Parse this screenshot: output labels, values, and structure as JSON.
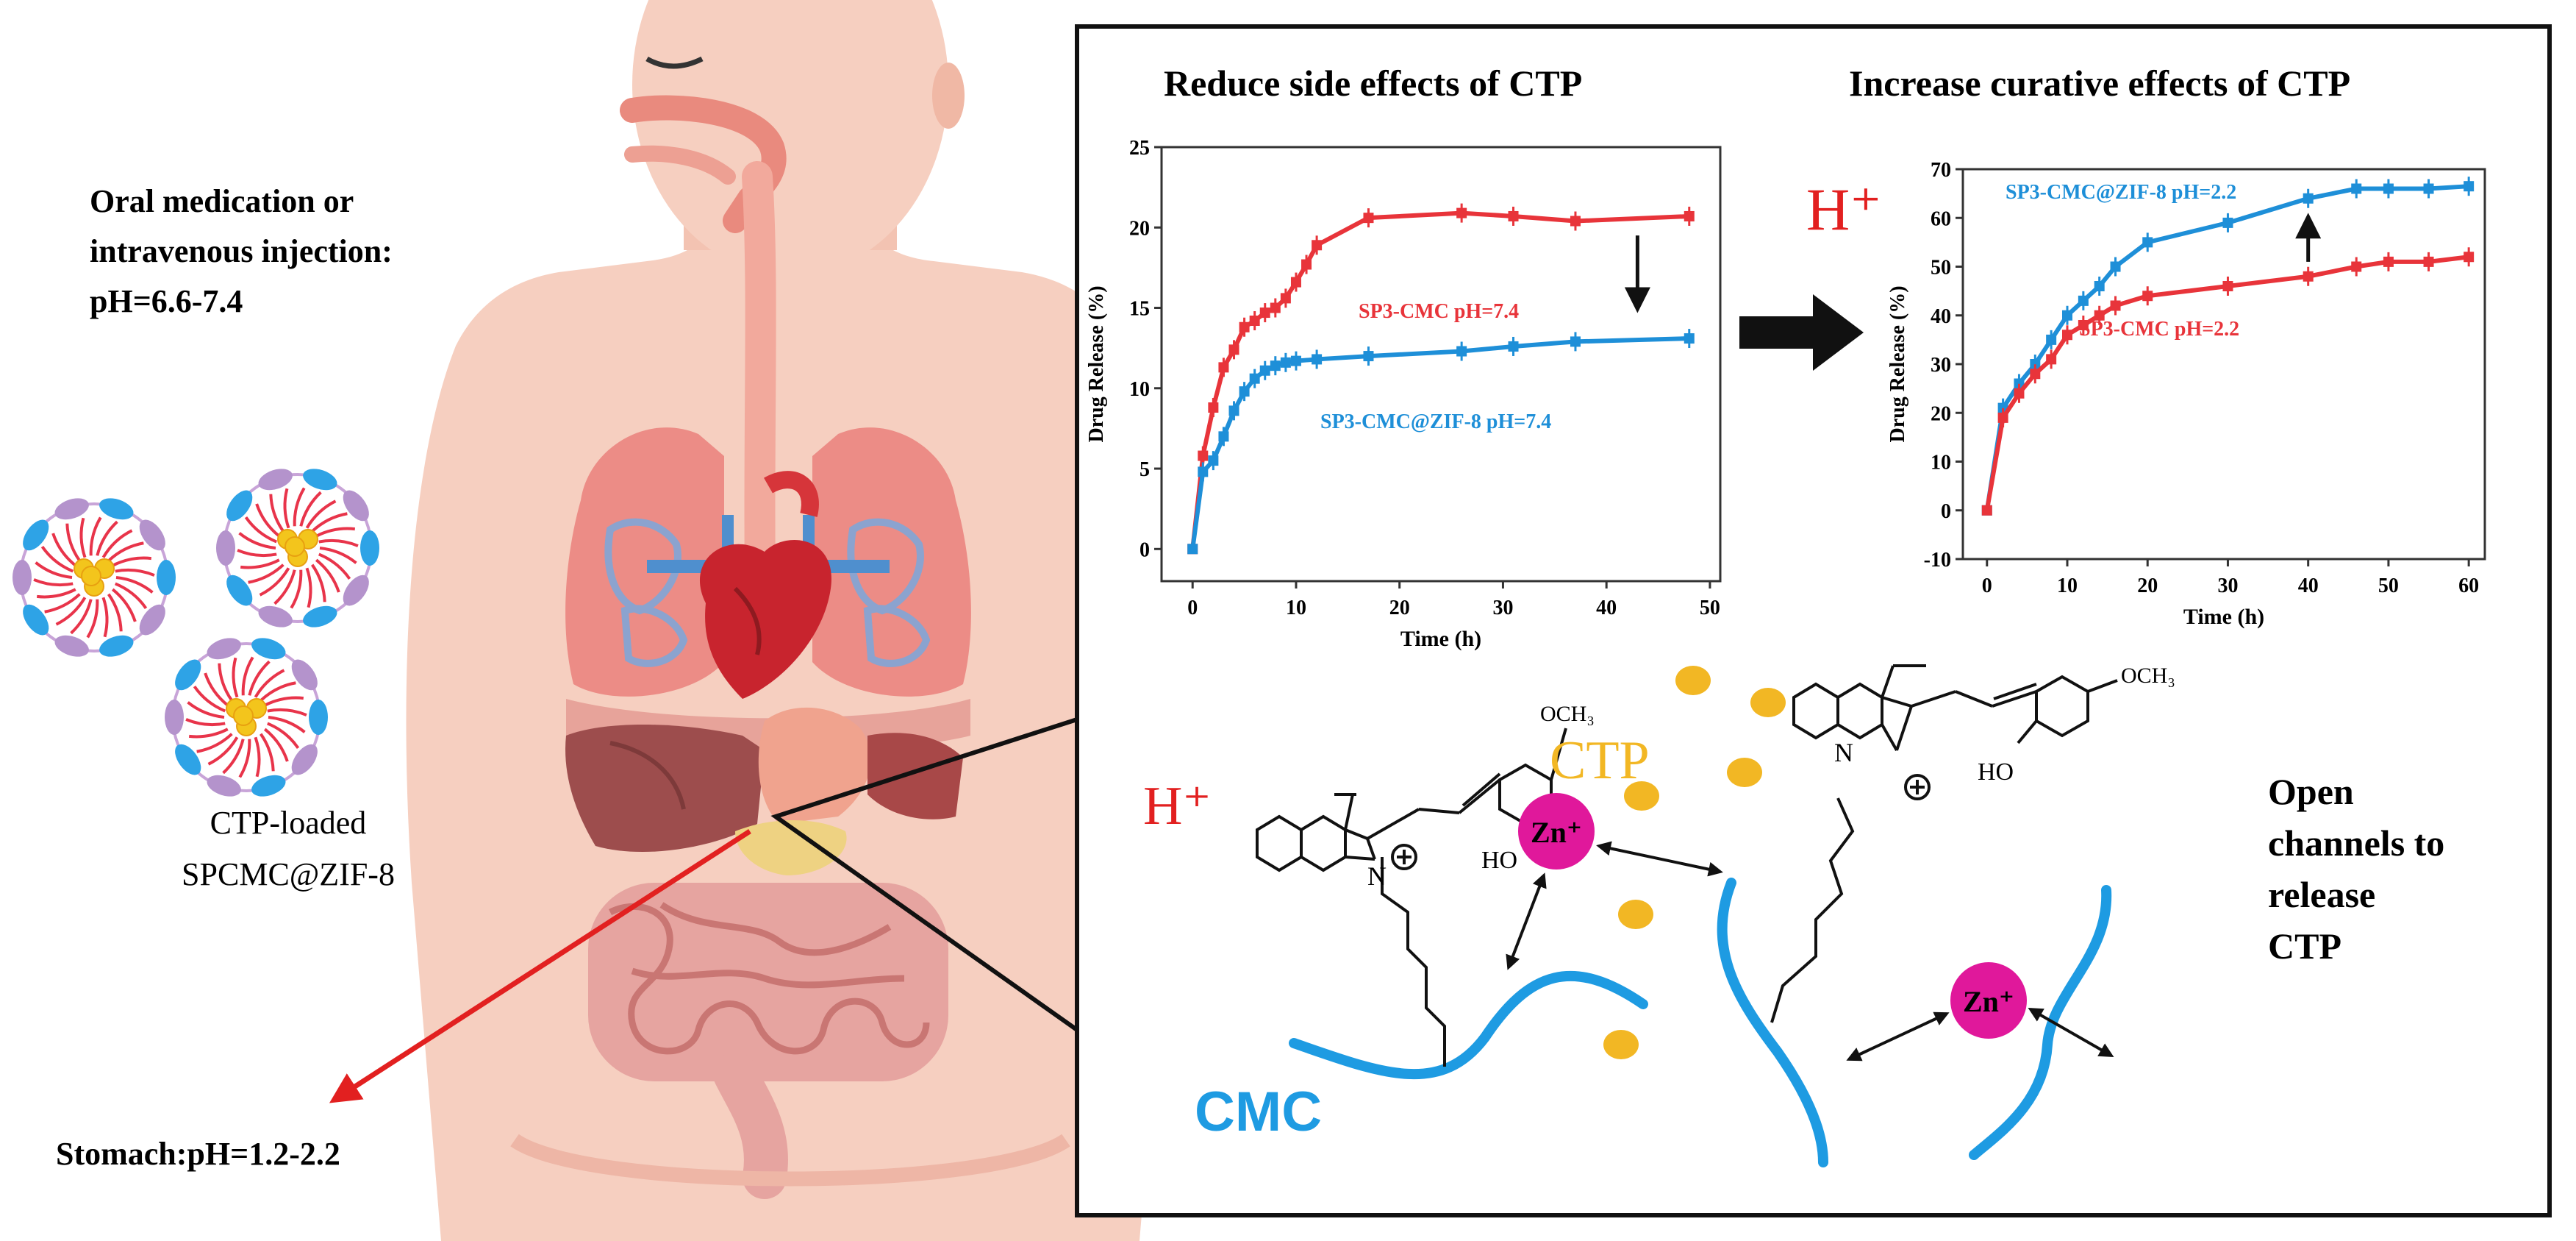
{
  "left": {
    "oral_lines": [
      "Oral medication or",
      "intravenous injection:",
      "pH=6.6-7.4"
    ],
    "loaded_lines": [
      "CTP-loaded",
      "SPCMC@ZIF-8"
    ],
    "stomach": "Stomach:pH=1.2-2.2"
  },
  "panel": {
    "title_left": "Reduce side effects of CTP",
    "title_right": "Increase curative effects of CTP",
    "hplus_mid": "H⁺",
    "hplus_low": "H⁺",
    "ctp_label": "CTP",
    "cmc_label": "CMC",
    "zn1": "Zn⁺",
    "zn2": "Zn⁺",
    "och3_1": "OCH₃",
    "och3_2": "OCH₃",
    "ho_1": "HO",
    "ho_2": "HO",
    "n_1": "N",
    "n_2": "N",
    "open_lines": [
      "Open",
      "channels to",
      "release",
      "CTP"
    ]
  },
  "chart_data": [
    {
      "type": "line",
      "xlabel": "Time (h)",
      "ylabel": "Drug Release (%)",
      "xlim": [
        -3,
        51
      ],
      "ylim": [
        -2,
        25
      ],
      "xticks": [
        0,
        10,
        20,
        30,
        40,
        50
      ],
      "yticks": [
        0,
        5,
        10,
        15,
        20,
        25
      ],
      "annotation": "arrow down from red to blue curve near t=43 h",
      "series": [
        {
          "name": "SP3-CMC pH=7.4",
          "color": "#e8343a",
          "x": [
            0,
            1,
            2,
            3,
            4,
            5,
            6,
            7,
            8,
            9,
            10,
            11,
            12,
            17,
            26,
            31,
            37,
            48
          ],
          "y": [
            0,
            5.8,
            8.8,
            11.3,
            12.4,
            13.8,
            14.2,
            14.7,
            15.0,
            15.6,
            16.6,
            17.7,
            18.9,
            20.6,
            20.9,
            20.7,
            20.4,
            20.7
          ]
        },
        {
          "name": "SP3-CMC@ZIF-8 pH=7.4",
          "color": "#1e8fd8",
          "x": [
            0,
            1,
            2,
            3,
            4,
            5,
            6,
            7,
            8,
            9,
            10,
            12,
            17,
            26,
            31,
            37,
            48
          ],
          "y": [
            0,
            4.8,
            5.5,
            7.0,
            8.6,
            9.8,
            10.6,
            11.1,
            11.4,
            11.6,
            11.7,
            11.8,
            12.0,
            12.3,
            12.6,
            12.9,
            13.1
          ]
        }
      ]
    },
    {
      "type": "line",
      "xlabel": "Time (h)",
      "ylabel": "Drug Release (%)",
      "xlim": [
        -3,
        62
      ],
      "ylim": [
        -10,
        70
      ],
      "xticks": [
        0,
        10,
        20,
        30,
        40,
        50,
        60
      ],
      "yticks": [
        -10,
        0,
        10,
        20,
        30,
        40,
        50,
        60,
        70
      ],
      "annotation": "arrow up from red to blue curve near t=40 h",
      "series": [
        {
          "name": "SP3-CMC@ZIF-8 pH=2.2",
          "color": "#1e8fd8",
          "x": [
            0,
            2,
            4,
            6,
            8,
            10,
            12,
            14,
            16,
            20,
            30,
            40,
            46,
            50,
            55,
            60
          ],
          "y": [
            0,
            21,
            26,
            30,
            35,
            40,
            43,
            46,
            50,
            55,
            59,
            64,
            66,
            66,
            66,
            66.5
          ]
        },
        {
          "name": "SP3-CMC pH=2.2",
          "color": "#e8343a",
          "x": [
            0,
            2,
            4,
            6,
            8,
            10,
            12,
            14,
            16,
            20,
            30,
            40,
            46,
            50,
            55,
            60
          ],
          "y": [
            0,
            19,
            24,
            28,
            31,
            36,
            38,
            40,
            42,
            44,
            46,
            48,
            50,
            51,
            51,
            52
          ]
        }
      ]
    }
  ]
}
